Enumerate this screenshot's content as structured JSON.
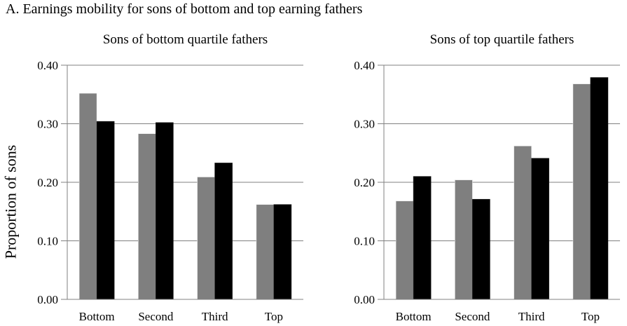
{
  "title": "A. Earnings mobility for sons of bottom and top earning fathers",
  "y_axis_label": "Proportion of sons",
  "colors": {
    "bar_gray": "#7f7f7f",
    "bar_black": "#000000",
    "grid": "#808080",
    "axis": "#808080",
    "text": "#000000",
    "background": "#ffffff"
  },
  "chart_data": [
    {
      "type": "bar",
      "title": "Sons of bottom quartile fathers",
      "categories": [
        "Bottom",
        "Second",
        "Third",
        "Top"
      ],
      "series": [
        {
          "name": "gray",
          "color": "#7f7f7f",
          "values": [
            0.352,
            0.283,
            0.209,
            0.162
          ]
        },
        {
          "name": "black",
          "color": "#000000",
          "values": [
            0.304,
            0.302,
            0.233,
            0.162
          ]
        }
      ],
      "xlabel": "",
      "ylabel": "Proportion of sons",
      "ylim": [
        0,
        0.4
      ],
      "yticks": [
        0,
        0.1,
        0.2,
        0.3,
        0.4
      ],
      "ytick_labels": [
        "0.00",
        "0.10",
        "0.20",
        "0.30",
        "0.40"
      ],
      "grid": true,
      "legend_position": "none"
    },
    {
      "type": "bar",
      "title": "Sons of top quartile fathers",
      "categories": [
        "Bottom",
        "Second",
        "Third",
        "Top"
      ],
      "series": [
        {
          "name": "gray",
          "color": "#7f7f7f",
          "values": [
            0.168,
            0.204,
            0.262,
            0.368
          ]
        },
        {
          "name": "black",
          "color": "#000000",
          "values": [
            0.21,
            0.171,
            0.241,
            0.379
          ]
        }
      ],
      "xlabel": "",
      "ylabel": "",
      "ylim": [
        0,
        0.4
      ],
      "yticks": [
        0,
        0.1,
        0.2,
        0.3,
        0.4
      ],
      "ytick_labels": [
        "0.00",
        "0.10",
        "0.20",
        "0.30",
        "0.40"
      ],
      "grid": true,
      "legend_position": "none"
    }
  ]
}
